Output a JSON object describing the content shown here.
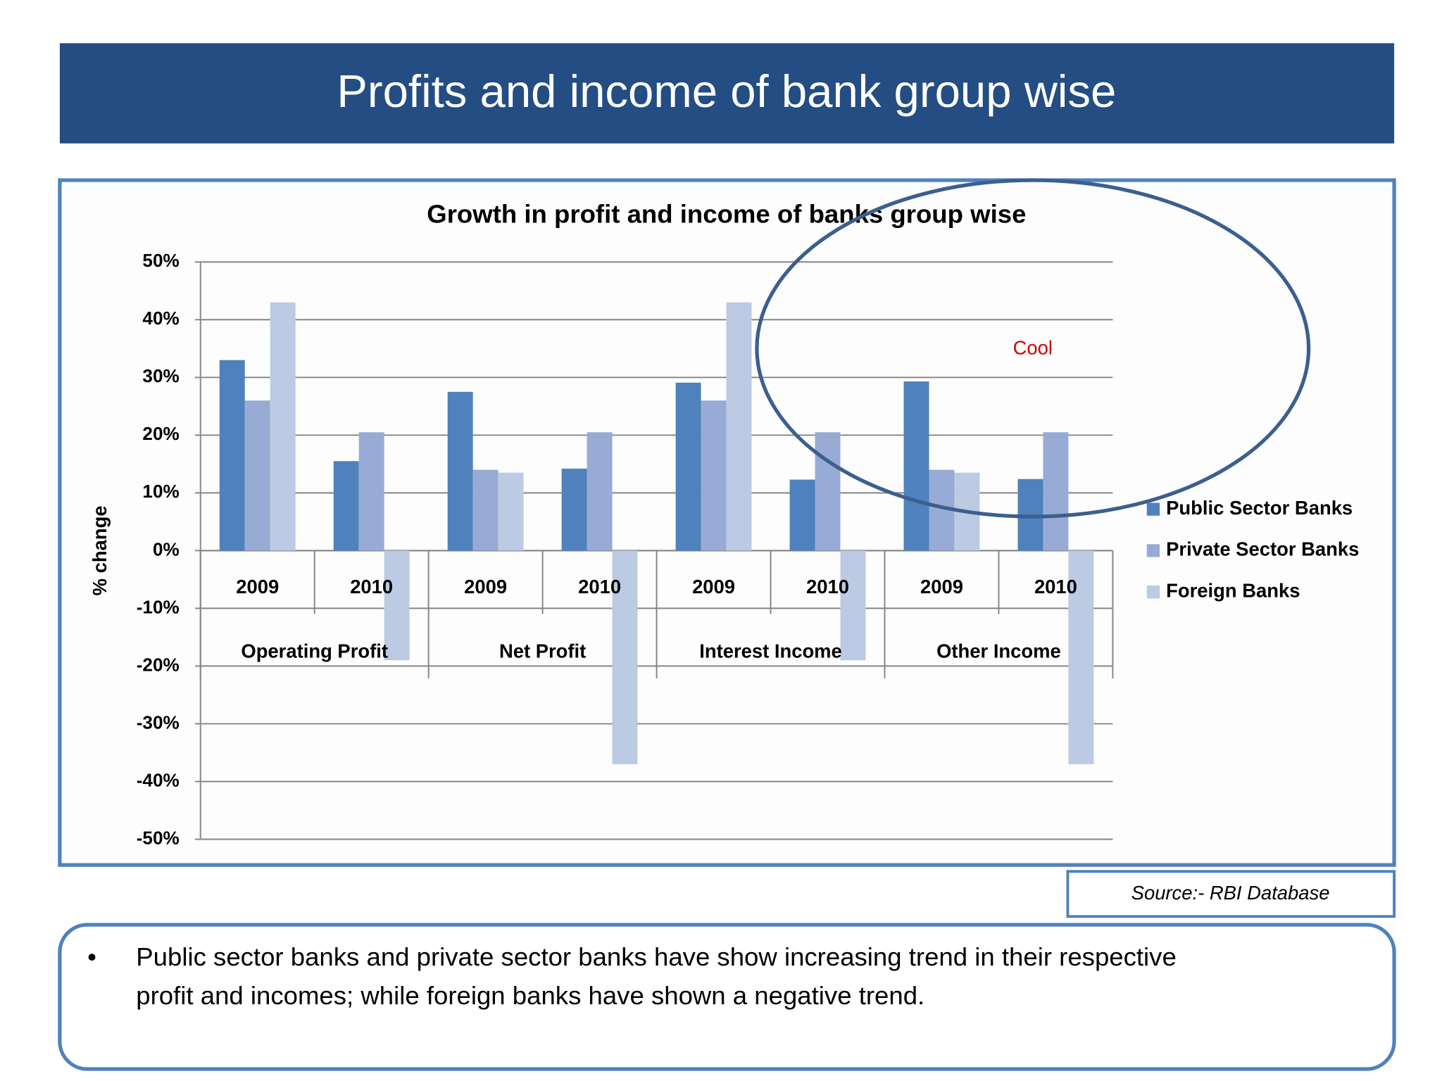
{
  "title": "Profits and income of bank group wise",
  "source": "Source:- RBI Database",
  "bullet": {
    "symbol": "•",
    "lines": [
      "Public sector banks and private sector banks have show increasing trend in their respective",
      "profit and incomes; while foreign banks have shown a negative trend."
    ]
  },
  "chart_data": {
    "type": "bar",
    "title": "Growth in profit and income of banks group wise",
    "y_label": "% change",
    "annotation": "Cool",
    "categories": [
      "2009",
      "2010",
      "2009",
      "2010",
      "2009",
      "2010",
      "2009",
      "2010"
    ],
    "category_groups": [
      "Operating Profit",
      "Net Profit",
      "Interest Income",
      "Other Income"
    ],
    "series": [
      {
        "name": "Public Sector Banks",
        "color": "#4f81bd",
        "values": [
          33,
          15.5,
          27.5,
          14.2,
          29.1,
          12.3,
          29.3,
          12.4
        ]
      },
      {
        "name": "Private Sector Banks",
        "color": "#97abd4",
        "values": [
          26,
          20.5,
          14,
          20.5,
          26,
          20.5,
          14,
          20.5
        ]
      },
      {
        "name": "Foreign Banks",
        "color": "#bccae3",
        "values": [
          43,
          -19,
          13.5,
          -37,
          43,
          -19,
          13.5,
          -37
        ]
      }
    ],
    "ylim": [
      -50,
      50
    ],
    "yticks": [
      {
        "value": 50,
        "label": "50%"
      },
      {
        "value": 40,
        "label": "40%"
      },
      {
        "value": 30,
        "label": "30%"
      },
      {
        "value": 20,
        "label": "20%"
      },
      {
        "value": 10,
        "label": "10%"
      },
      {
        "value": 0,
        "label": "0%"
      },
      {
        "value": -10,
        "label": "-10%"
      },
      {
        "value": -20,
        "label": "-20%"
      },
      {
        "value": -30,
        "label": "-30%"
      },
      {
        "value": -40,
        "label": "-40%"
      },
      {
        "value": -50,
        "label": "-50%"
      }
    ],
    "grid": true,
    "legend": "right"
  }
}
